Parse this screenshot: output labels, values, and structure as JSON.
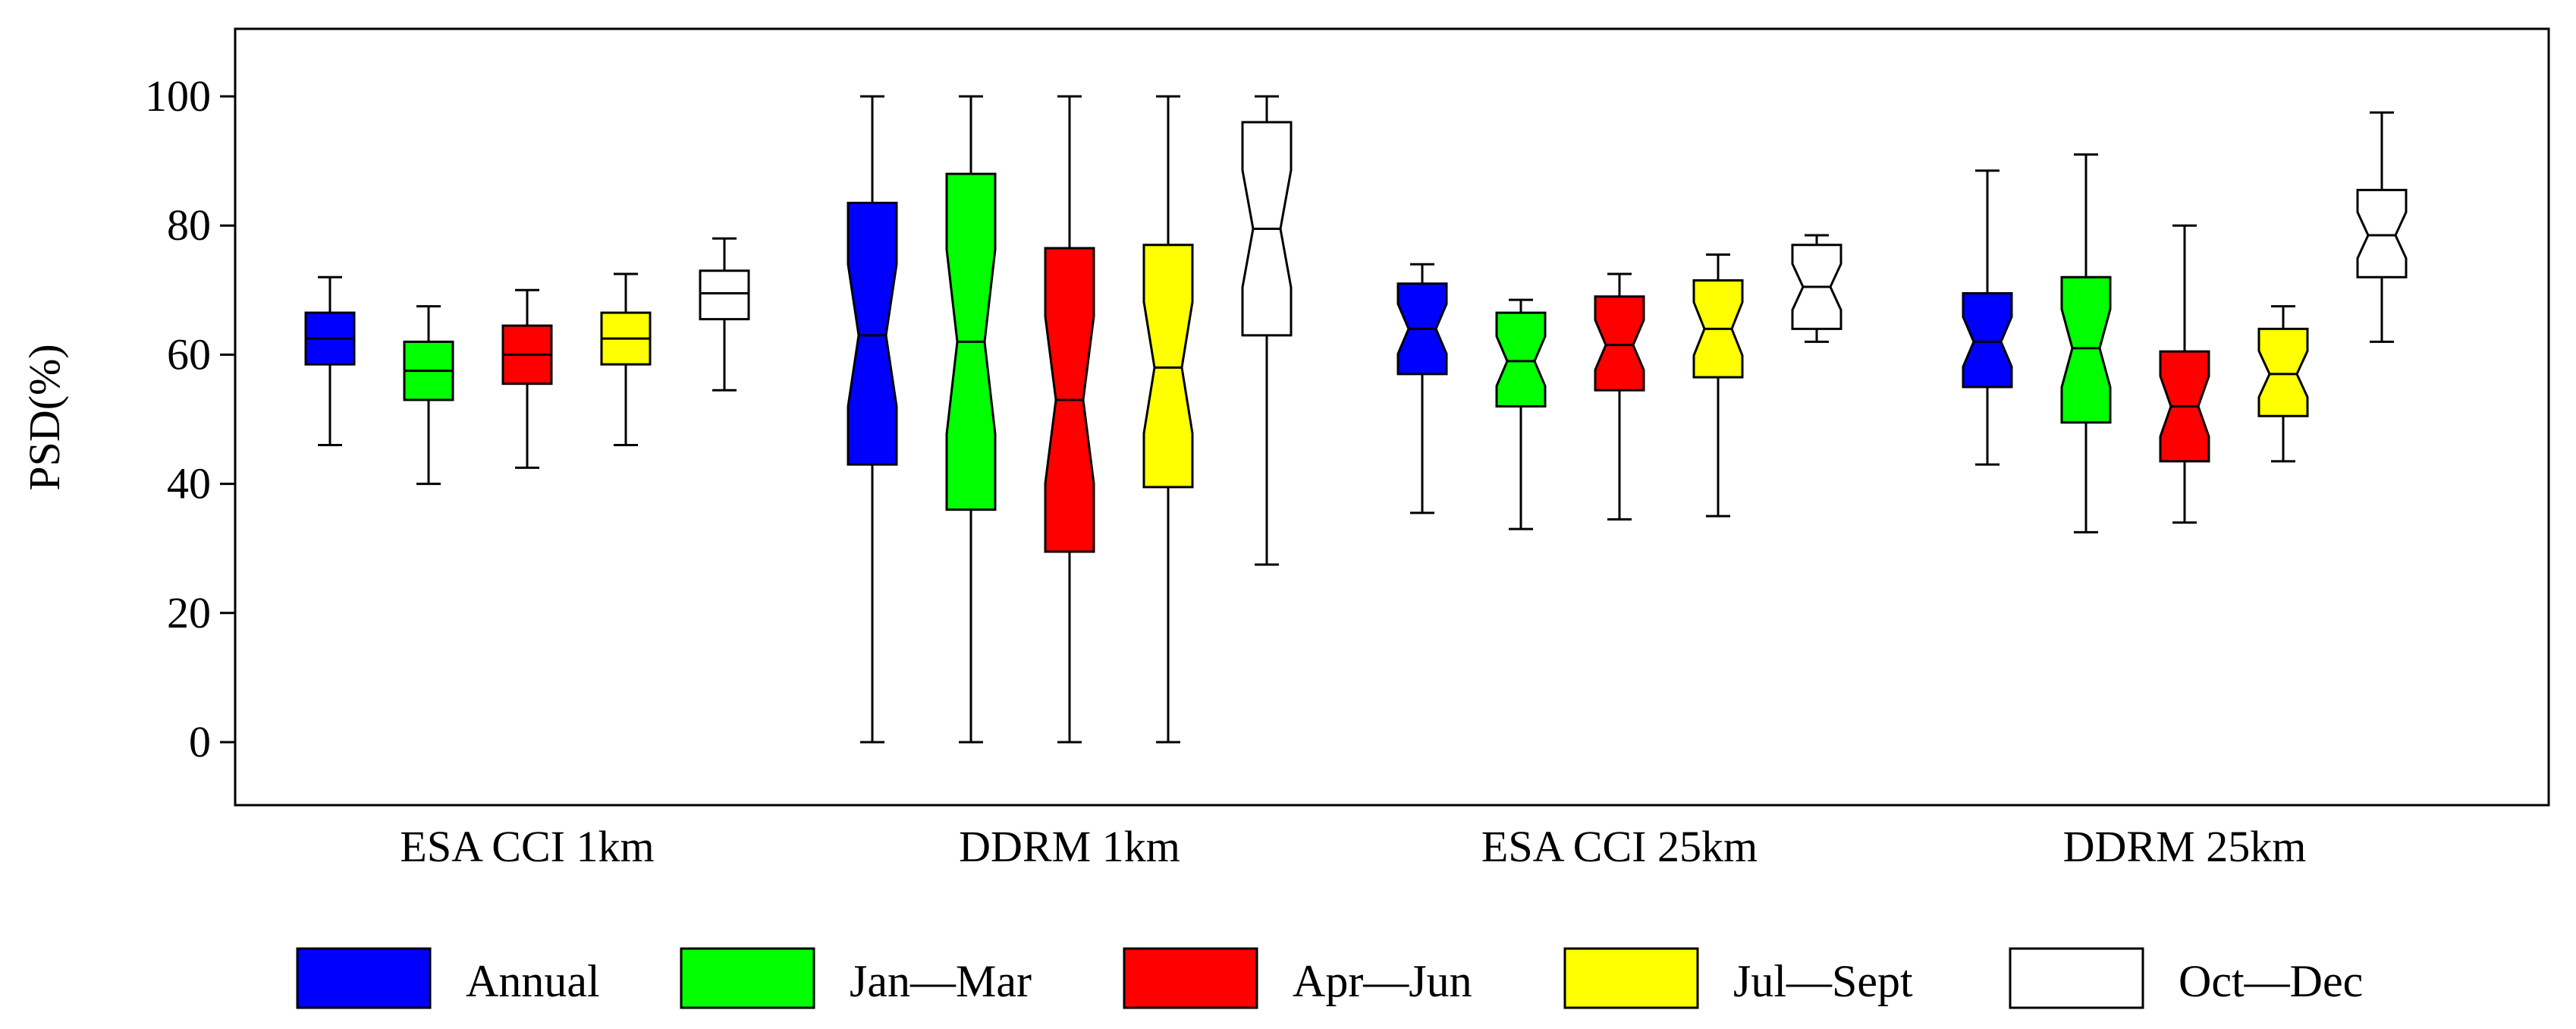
{
  "chart_data": {
    "type": "boxplot",
    "ylabel": "PSD(%)",
    "ylim": [
      -10,
      110
    ],
    "yticks": [
      0,
      20,
      40,
      60,
      80,
      100
    ],
    "groups": [
      "ESA CCI 1km",
      "DDRM 1km",
      "ESA CCI 25km",
      "DDRM 25km"
    ],
    "series": [
      {
        "name": "Annual",
        "color": "#0000ff"
      },
      {
        "name": "Jan—Mar",
        "color": "#00ff00"
      },
      {
        "name": "Apr—Jun",
        "color": "#ff0000"
      },
      {
        "name": "Jul—Sept",
        "color": "#ffff00"
      },
      {
        "name": "Oct—Dec",
        "color": "#ffffff"
      }
    ],
    "boxes": [
      [
        {
          "whislo": 46,
          "q1": 58.5,
          "med": 62.5,
          "q3": 66.5,
          "whishi": 72,
          "notched": false
        },
        {
          "whislo": 40,
          "q1": 53,
          "med": 57.5,
          "q3": 62,
          "whishi": 67.5,
          "notched": false
        },
        {
          "whislo": 42.5,
          "q1": 55.5,
          "med": 60,
          "q3": 64.5,
          "whishi": 70,
          "notched": false
        },
        {
          "whislo": 46,
          "q1": 58.5,
          "med": 62.5,
          "q3": 66.5,
          "whishi": 72.5,
          "notched": false
        },
        {
          "whislo": 54.5,
          "q1": 65.5,
          "med": 69.5,
          "q3": 73,
          "whishi": 78,
          "notched": false
        }
      ],
      [
        {
          "whislo": 0,
          "q1": 43,
          "med": 63,
          "q3": 83.5,
          "whishi": 100,
          "notched": true
        },
        {
          "whislo": 0,
          "q1": 36,
          "med": 62,
          "q3": 88,
          "whishi": 100,
          "notched": true
        },
        {
          "whislo": 0,
          "q1": 29.5,
          "med": 53,
          "q3": 76.5,
          "whishi": 100,
          "notched": true
        },
        {
          "whislo": 0,
          "q1": 39.5,
          "med": 58,
          "q3": 77,
          "whishi": 100,
          "notched": true
        },
        {
          "whislo": 27.5,
          "q1": 63,
          "med": 79.5,
          "q3": 96,
          "whishi": 100,
          "notched": true
        }
      ],
      [
        {
          "whislo": 35.5,
          "q1": 57,
          "med": 64,
          "q3": 71,
          "whishi": 74,
          "notched": true
        },
        {
          "whislo": 33,
          "q1": 52,
          "med": 59,
          "q3": 66.5,
          "whishi": 68.5,
          "notched": true
        },
        {
          "whislo": 34.5,
          "q1": 54.5,
          "med": 61.5,
          "q3": 69,
          "whishi": 72.5,
          "notched": true
        },
        {
          "whislo": 35,
          "q1": 56.5,
          "med": 64,
          "q3": 71.5,
          "whishi": 75.5,
          "notched": true
        },
        {
          "whislo": 62,
          "q1": 64,
          "med": 70.5,
          "q3": 77,
          "whishi": 78.5,
          "notched": true
        }
      ],
      [
        {
          "whislo": 43,
          "q1": 55,
          "med": 62,
          "q3": 69.5,
          "whishi": 88.5,
          "notched": true
        },
        {
          "whislo": 32.5,
          "q1": 49.5,
          "med": 61,
          "q3": 72,
          "whishi": 91,
          "notched": true
        },
        {
          "whislo": 34,
          "q1": 43.5,
          "med": 52,
          "q3": 60.5,
          "whishi": 80,
          "notched": true
        },
        {
          "whislo": 43.5,
          "q1": 50.5,
          "med": 57,
          "q3": 64,
          "whishi": 67.5,
          "notched": true
        },
        {
          "whislo": 62,
          "q1": 72,
          "med": 78.5,
          "q3": 85.5,
          "whishi": 97.5,
          "notched": true
        }
      ]
    ]
  }
}
